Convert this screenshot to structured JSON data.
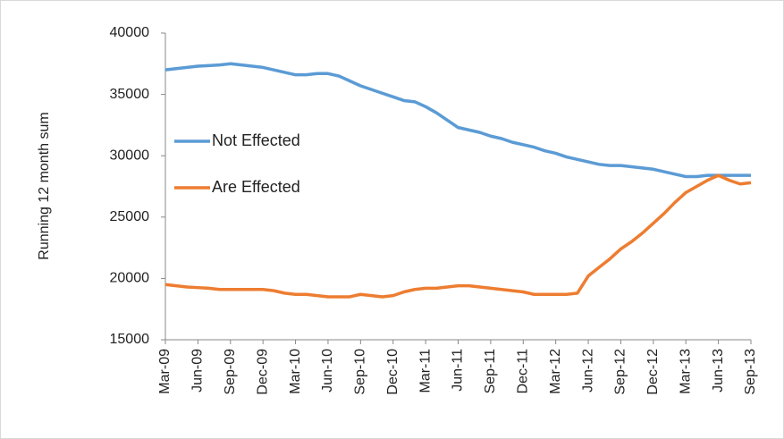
{
  "chart_data": {
    "type": "line",
    "y_label": "Running 12 month sum",
    "categories": [
      "Mar-09",
      null,
      null,
      "Jun-09",
      null,
      null,
      "Sep-09",
      null,
      null,
      "Dec-09",
      null,
      null,
      "Mar-10",
      null,
      null,
      "Jun-10",
      null,
      null,
      "Sep-10",
      null,
      null,
      "Dec-10",
      null,
      null,
      "Mar-11",
      null,
      null,
      "Jun-11",
      null,
      null,
      "Sep-11",
      null,
      null,
      "Dec-11",
      null,
      null,
      "Mar-12",
      null,
      null,
      "Jun-12",
      null,
      null,
      "Sep-12",
      null,
      null,
      "Dec-12",
      null,
      null,
      "Mar-13",
      null,
      null,
      "Jun-13",
      null,
      null,
      "Sep-13"
    ],
    "series": [
      {
        "name": "Not Effected",
        "color": "#5b9bd5",
        "values": [
          37000,
          37100,
          37200,
          37300,
          37350,
          37400,
          37500,
          37400,
          37300,
          37200,
          37000,
          36800,
          36600,
          36600,
          36700,
          36700,
          36500,
          36100,
          35700,
          35400,
          35100,
          34800,
          34500,
          34400,
          34000,
          33500,
          32900,
          32300,
          32100,
          31900,
          31600,
          31400,
          31100,
          30900,
          30700,
          30400,
          30200,
          29900,
          29700,
          29500,
          29300,
          29200,
          29200,
          29100,
          29000,
          28900,
          28700,
          28500,
          28300,
          28300,
          28400,
          28400,
          28400,
          28400,
          28400
        ]
      },
      {
        "name": "Are Effected",
        "color": "#ed7d31",
        "values": [
          19500,
          19400,
          19300,
          19250,
          19200,
          19100,
          19100,
          19100,
          19100,
          19100,
          19000,
          18800,
          18700,
          18700,
          18600,
          18500,
          18500,
          18500,
          18700,
          18600,
          18500,
          18600,
          18900,
          19100,
          19200,
          19200,
          19300,
          19400,
          19400,
          19300,
          19200,
          19100,
          19000,
          18900,
          18700,
          18700,
          18700,
          18700,
          18800,
          20200,
          20900,
          21600,
          22400,
          23000,
          23700,
          24500,
          25300,
          26200,
          27000,
          27500,
          28000,
          28400,
          28000,
          27700,
          27800
        ]
      }
    ],
    "ylim": [
      15000,
      40000
    ],
    "yticks": [
      15000,
      20000,
      25000,
      30000,
      35000,
      40000
    ],
    "grid": false,
    "legend": "left"
  }
}
